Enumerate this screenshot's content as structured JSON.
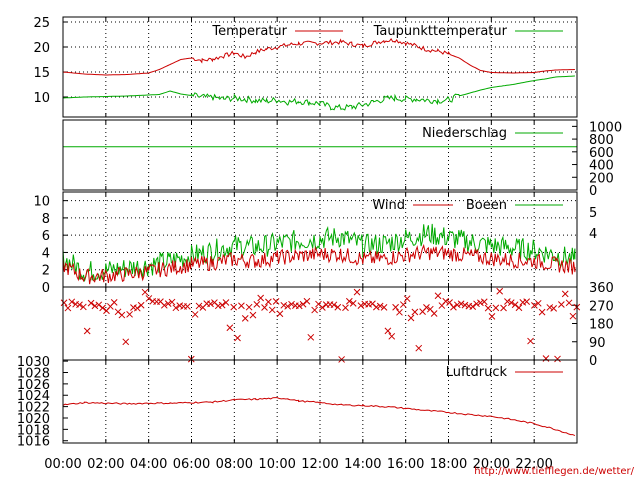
{
  "chart_data": [
    {
      "panel": "temperature",
      "type": "line",
      "yticks": [
        10,
        15,
        20,
        25
      ],
      "ylim": [
        6,
        26
      ],
      "legend_placement": "top-right",
      "grid": true,
      "series": [
        {
          "name": "Temperatur",
          "color": "#cc0000",
          "points": [
            [
              0,
              15.0
            ],
            [
              1,
              14.6
            ],
            [
              2,
              14.4
            ],
            [
              3,
              14.5
            ],
            [
              4,
              14.8
            ],
            [
              4.5,
              15.5
            ],
            [
              5,
              16.5
            ],
            [
              5.5,
              17.5
            ],
            [
              6,
              17.8
            ],
            [
              6.5,
              17.3
            ],
            [
              7,
              17.6
            ],
            [
              7.5,
              18.2
            ],
            [
              8,
              18.8
            ],
            [
              8.5,
              18.0
            ],
            [
              9,
              19.0
            ],
            [
              9.5,
              19.6
            ],
            [
              10,
              20.0
            ],
            [
              10.5,
              20.4
            ],
            [
              11,
              20.7
            ],
            [
              12,
              20.8
            ],
            [
              13,
              21.0
            ],
            [
              13.5,
              20.6
            ],
            [
              14,
              20.2
            ],
            [
              14.5,
              20.8
            ],
            [
              15,
              21.3
            ],
            [
              15.5,
              21.4
            ],
            [
              16,
              20.8
            ],
            [
              16.5,
              20.2
            ],
            [
              17,
              19.5
            ],
            [
              17.5,
              19.2
            ],
            [
              18,
              18.6
            ],
            [
              18.5,
              17.8
            ],
            [
              19,
              16.4
            ],
            [
              19.5,
              15.3
            ],
            [
              20,
              14.9
            ],
            [
              21,
              14.8
            ],
            [
              22,
              14.9
            ],
            [
              22.5,
              15.2
            ],
            [
              23,
              15.4
            ],
            [
              23.9,
              15.5
            ]
          ]
        },
        {
          "name": "Taupunkttemperatur",
          "color": "#00aa00",
          "points": [
            [
              0,
              9.8
            ],
            [
              1,
              10.0
            ],
            [
              2,
              10.1
            ],
            [
              3,
              10.2
            ],
            [
              4,
              10.4
            ],
            [
              4.5,
              10.5
            ],
            [
              5,
              11.2
            ],
            [
              5.5,
              10.6
            ],
            [
              6,
              10.3
            ],
            [
              6.5,
              10.0
            ],
            [
              7,
              9.9
            ],
            [
              7.5,
              9.6
            ],
            [
              8,
              9.8
            ],
            [
              8.5,
              9.6
            ],
            [
              9,
              9.3
            ],
            [
              9.5,
              9.2
            ],
            [
              10,
              9.4
            ],
            [
              10.5,
              9.0
            ],
            [
              11,
              9.2
            ],
            [
              11.5,
              8.9
            ],
            [
              12,
              8.7
            ],
            [
              12.5,
              8.0
            ],
            [
              13,
              7.8
            ],
            [
              13.5,
              8.0
            ],
            [
              14,
              8.4
            ],
            [
              14.5,
              9.0
            ],
            [
              15,
              9.6
            ],
            [
              15.5,
              9.8
            ],
            [
              16,
              9.6
            ],
            [
              16.5,
              9.6
            ],
            [
              17,
              9.4
            ],
            [
              17.5,
              9.3
            ],
            [
              18,
              9.4
            ],
            [
              18.5,
              10.2
            ],
            [
              19,
              10.8
            ],
            [
              19.5,
              11.4
            ],
            [
              20,
              11.9
            ],
            [
              21,
              12.5
            ],
            [
              22,
              13.3
            ],
            [
              22.5,
              13.6
            ],
            [
              23,
              14.0
            ],
            [
              23.9,
              14.2
            ]
          ]
        }
      ]
    },
    {
      "panel": "precipitation",
      "type": "line",
      "yticks": [
        0,
        200,
        400,
        600,
        800,
        1000
      ],
      "ylim": [
        0,
        1100
      ],
      "grid": true,
      "series": [
        {
          "name": "Niederschlag",
          "color": "#00aa00",
          "points": [
            [
              0,
              680
            ],
            [
              24,
              680
            ]
          ]
        }
      ]
    },
    {
      "panel": "wind",
      "type": "line",
      "yticks_left": [
        0,
        2,
        4,
        6,
        8,
        10
      ],
      "yticks_right": [
        4,
        5
      ],
      "ylim": [
        0,
        11
      ],
      "grid": true,
      "series": [
        {
          "name": "Wind",
          "color": "#cc0000",
          "points": [
            [
              0,
              2.5
            ],
            [
              1,
              1.2
            ],
            [
              2,
              1.3
            ],
            [
              3,
              1.5
            ],
            [
              4,
              1.8
            ],
            [
              5,
              2.2
            ],
            [
              6,
              2.6
            ],
            [
              7,
              2.8
            ],
            [
              8,
              3.2
            ],
            [
              9,
              3.0
            ],
            [
              10,
              3.4
            ],
            [
              11,
              3.6
            ],
            [
              12,
              3.8
            ],
            [
              13,
              3.8
            ],
            [
              14,
              3.2
            ],
            [
              15,
              3.3
            ],
            [
              16,
              3.7
            ],
            [
              17,
              4.0
            ],
            [
              18,
              3.9
            ],
            [
              19,
              3.6
            ],
            [
              20,
              3.3
            ],
            [
              21,
              3.1
            ],
            [
              22,
              3.0
            ],
            [
              23,
              2.6
            ],
            [
              23.9,
              2.3
            ]
          ]
        },
        {
          "name": "Boeen",
          "color": "#00aa00",
          "points": [
            [
              0,
              3.3
            ],
            [
              1,
              1.8
            ],
            [
              2,
              1.9
            ],
            [
              3,
              2.2
            ],
            [
              4,
              2.5
            ],
            [
              5,
              3.0
            ],
            [
              6,
              3.6
            ],
            [
              7,
              4.2
            ],
            [
              8,
              4.8
            ],
            [
              9,
              4.6
            ],
            [
              10,
              5.0
            ],
            [
              11,
              5.4
            ],
            [
              12,
              5.6
            ],
            [
              13,
              5.8
            ],
            [
              14,
              4.8
            ],
            [
              15,
              5.0
            ],
            [
              16,
              5.6
            ],
            [
              17,
              6.2
            ],
            [
              18,
              5.7
            ],
            [
              19,
              5.2
            ],
            [
              20,
              4.8
            ],
            [
              21,
              4.5
            ],
            [
              22,
              4.3
            ],
            [
              23,
              3.7
            ],
            [
              23.9,
              3.2
            ]
          ]
        }
      ]
    },
    {
      "panel": "wind_direction",
      "type": "scatter",
      "yticks": [
        0,
        90,
        180,
        270,
        360
      ],
      "ylim": [
        0,
        360
      ],
      "marker_color": "#cc0000"
    },
    {
      "panel": "pressure",
      "type": "line",
      "yticks": [
        1016,
        1018,
        1020,
        1022,
        1024,
        1026,
        1028,
        1030
      ],
      "ylim": [
        1015.6,
        1030.2
      ],
      "grid": true,
      "series": [
        {
          "name": "Luftdruck",
          "color": "#cc0000",
          "points": [
            [
              0,
              1022.3
            ],
            [
              1,
              1022.7
            ],
            [
              2,
              1022.6
            ],
            [
              3,
              1022.5
            ],
            [
              4,
              1022.6
            ],
            [
              5,
              1022.6
            ],
            [
              6,
              1022.7
            ],
            [
              7,
              1022.8
            ],
            [
              8,
              1023.2
            ],
            [
              9,
              1023.3
            ],
            [
              10,
              1023.5
            ],
            [
              10.5,
              1023.4
            ],
            [
              11,
              1023.0
            ],
            [
              12,
              1022.7
            ],
            [
              13,
              1022.3
            ],
            [
              14,
              1022.2
            ],
            [
              15,
              1022.0
            ],
            [
              16,
              1021.7
            ],
            [
              17,
              1021.3
            ],
            [
              18,
              1021.0
            ],
            [
              19,
              1020.6
            ],
            [
              20,
              1020.3
            ],
            [
              21,
              1019.7
            ],
            [
              22,
              1019.0
            ],
            [
              23,
              1018.0
            ],
            [
              23.9,
              1016.9
            ]
          ]
        }
      ]
    }
  ],
  "xaxis": {
    "ticks": [
      "00:00",
      "02:00",
      "04:00",
      "06:00",
      "08:00",
      "10:00",
      "12:00",
      "14:00",
      "16:00",
      "18:00",
      "20:00",
      "22:00"
    ],
    "xlim": [
      0,
      24
    ]
  },
  "source_url": "http://www.tiefflegen.de/wetter/"
}
